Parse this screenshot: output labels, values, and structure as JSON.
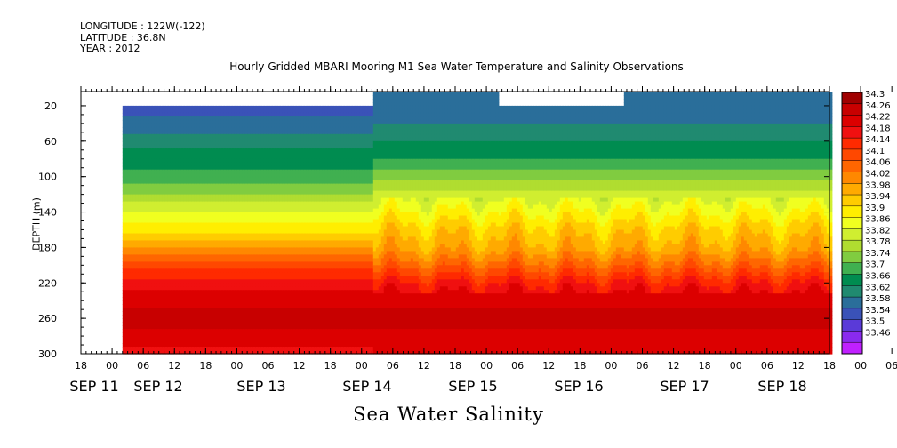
{
  "meta": {
    "longitude": "LONGITUDE : 122W(-122)",
    "latitude": "LATITUDE : 36.8N",
    "year": "YEAR : 2012"
  },
  "chart_data": {
    "type": "heatmap",
    "title": "Hourly Gridded MBARI Mooring M1 Sea Water Temperature and Salinity Observations",
    "xlabel": "Sea Water Salinity",
    "ylabel": "DEPTH (m)",
    "x_axis": {
      "hour_ticks": [
        "18",
        "00",
        "06",
        "12",
        "18",
        "00",
        "06",
        "12",
        "18",
        "00",
        "06",
        "12",
        "18",
        "00",
        "06",
        "12",
        "18",
        "00",
        "06",
        "12",
        "18",
        "00",
        "06",
        "12",
        "18",
        "00",
        "06",
        "12",
        "18"
      ],
      "day_labels": [
        "SEP 11",
        "SEP 12",
        "SEP 13",
        "SEP 14",
        "SEP 15",
        "SEP 16",
        "SEP 17",
        "SEP 18"
      ],
      "range_hours_from_sep11_18": [
        0,
        144
      ]
    },
    "y_axis": {
      "ticks": [
        20,
        60,
        100,
        140,
        180,
        220,
        260,
        300
      ],
      "range": [
        300,
        4
      ],
      "inverted": true
    },
    "colorbar": {
      "levels": [
        34.3,
        34.26,
        34.22,
        34.18,
        34.14,
        34.1,
        34.06,
        34.02,
        33.98,
        33.94,
        33.9,
        33.86,
        33.82,
        33.78,
        33.74,
        33.7,
        33.66,
        33.62,
        33.58,
        33.54,
        33.5,
        33.46
      ],
      "colors": [
        "#a00000",
        "#c80000",
        "#dc0000",
        "#f01010",
        "#ff2a00",
        "#ff4800",
        "#ff6600",
        "#ff8800",
        "#ffaa00",
        "#ffcc00",
        "#ffee00",
        "#f0ff20",
        "#d0ee30",
        "#b0dd30",
        "#80cc40",
        "#40b050",
        "#008c50",
        "#208a70",
        "#2a6e9a",
        "#3a52b8",
        "#5a3ad8",
        "#8a2aee",
        "#c020ff"
      ]
    },
    "salinity_profile": {
      "depths": [
        20,
        40,
        60,
        80,
        100,
        120,
        140,
        160,
        180,
        200,
        220,
        240,
        260,
        280,
        300
      ],
      "early_sep12_to_sep14": [
        33.56,
        33.59,
        33.64,
        33.68,
        33.71,
        33.78,
        33.86,
        33.93,
        34.02,
        34.12,
        34.2,
        34.24,
        34.28,
        34.24,
        34.2
      ],
      "sep15_to_sep18": [
        33.58,
        33.62,
        33.66,
        33.7,
        33.76,
        33.84,
        33.9,
        33.96,
        34.0,
        34.08,
        34.18,
        34.24,
        34.28,
        34.24,
        34.22
      ]
    },
    "grid": false,
    "legend": "right-colorbar"
  }
}
